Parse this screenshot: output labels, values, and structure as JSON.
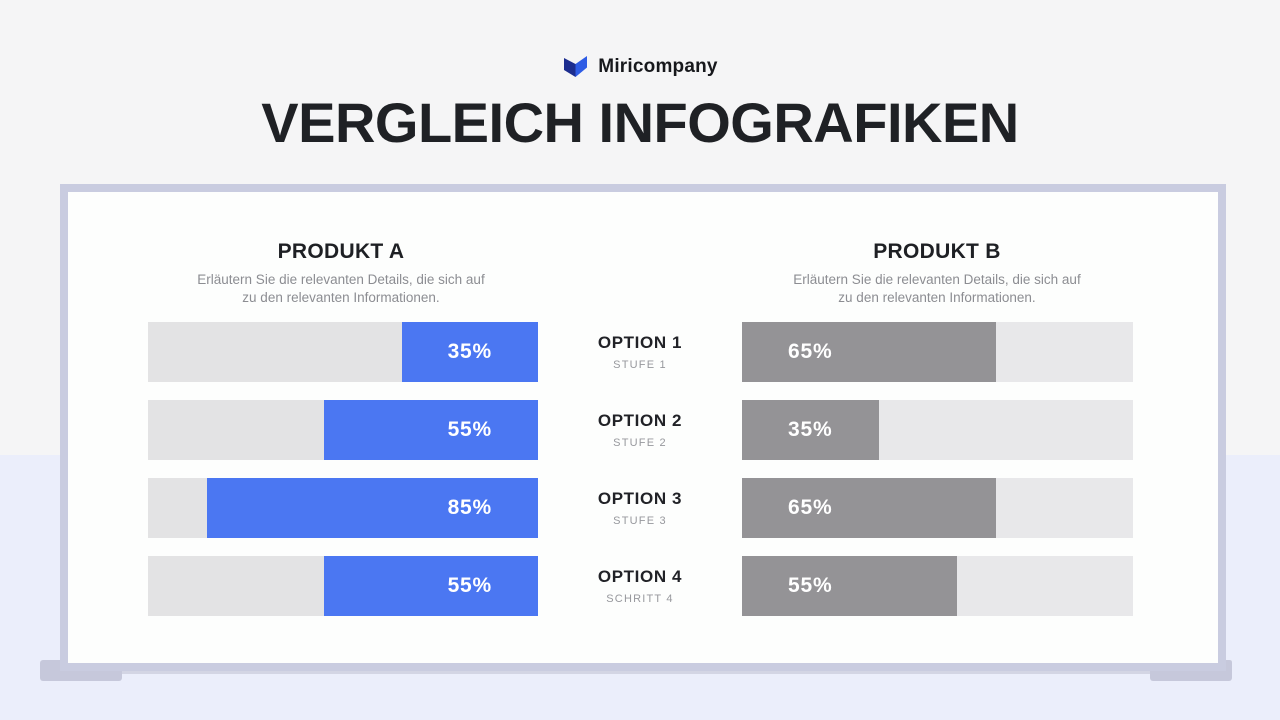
{
  "brand": {
    "name": "Miricompany"
  },
  "title": "VERGLEICH INFOGRAFIKEN",
  "panel": {
    "product_a": {
      "title": "PRODUKT A",
      "desc1": "Erläutern Sie die relevanten Details, die sich auf",
      "desc2": "zu den relevanten Informationen."
    },
    "product_b": {
      "title": "PRODUKT B",
      "desc1": "Erläutern Sie die relevanten Details, die sich auf",
      "desc2": "zu den relevanten Informationen."
    }
  },
  "bars": [
    {
      "option": "OPTION 1",
      "sub": "STUFE 1",
      "a_label": "35%",
      "a_pct": 35,
      "b_label": "65%",
      "b_pct": 65
    },
    {
      "option": "OPTION 2",
      "sub": "STUFE 2",
      "a_label": "55%",
      "a_pct": 55,
      "b_label": "35%",
      "b_pct": 35
    },
    {
      "option": "OPTION 3",
      "sub": "STUFE 3",
      "a_label": "85%",
      "a_pct": 85,
      "b_label": "65%",
      "b_pct": 65
    },
    {
      "option": "OPTION 4",
      "sub": "SCHRITT 4",
      "a_label": "55%",
      "a_pct": 55,
      "b_label": "55%",
      "b_pct": 55
    }
  ],
  "colors": {
    "accent_blue": "#4b77f2",
    "bar_gray": "#949396",
    "track_left": "#e3e3e4",
    "track_right": "#e8e8ea",
    "board_border": "#c9cce0",
    "background_top": "#f5f5f6",
    "background_bottom": "#ebeefb",
    "logo_dark_blue": "#1c2d8f",
    "logo_bright_blue": "#2e5ce5"
  },
  "chart_data": {
    "type": "bar",
    "title": "VERGLEICH INFOGRAFIKEN",
    "categories": [
      "OPTION 1 – STUFE 1",
      "OPTION 2 – STUFE 2",
      "OPTION 3 – STUFE 3",
      "OPTION 4 – SCHRITT 4"
    ],
    "series": [
      {
        "name": "PRODUKT A",
        "values": [
          35,
          55,
          85,
          55
        ]
      },
      {
        "name": "PRODUKT B",
        "values": [
          65,
          35,
          65,
          55
        ]
      }
    ],
    "unit": "percent",
    "value_range": [
      0,
      100
    ],
    "layout": "horizontal-mirrored-comparison",
    "legend_position": "column-headers"
  }
}
